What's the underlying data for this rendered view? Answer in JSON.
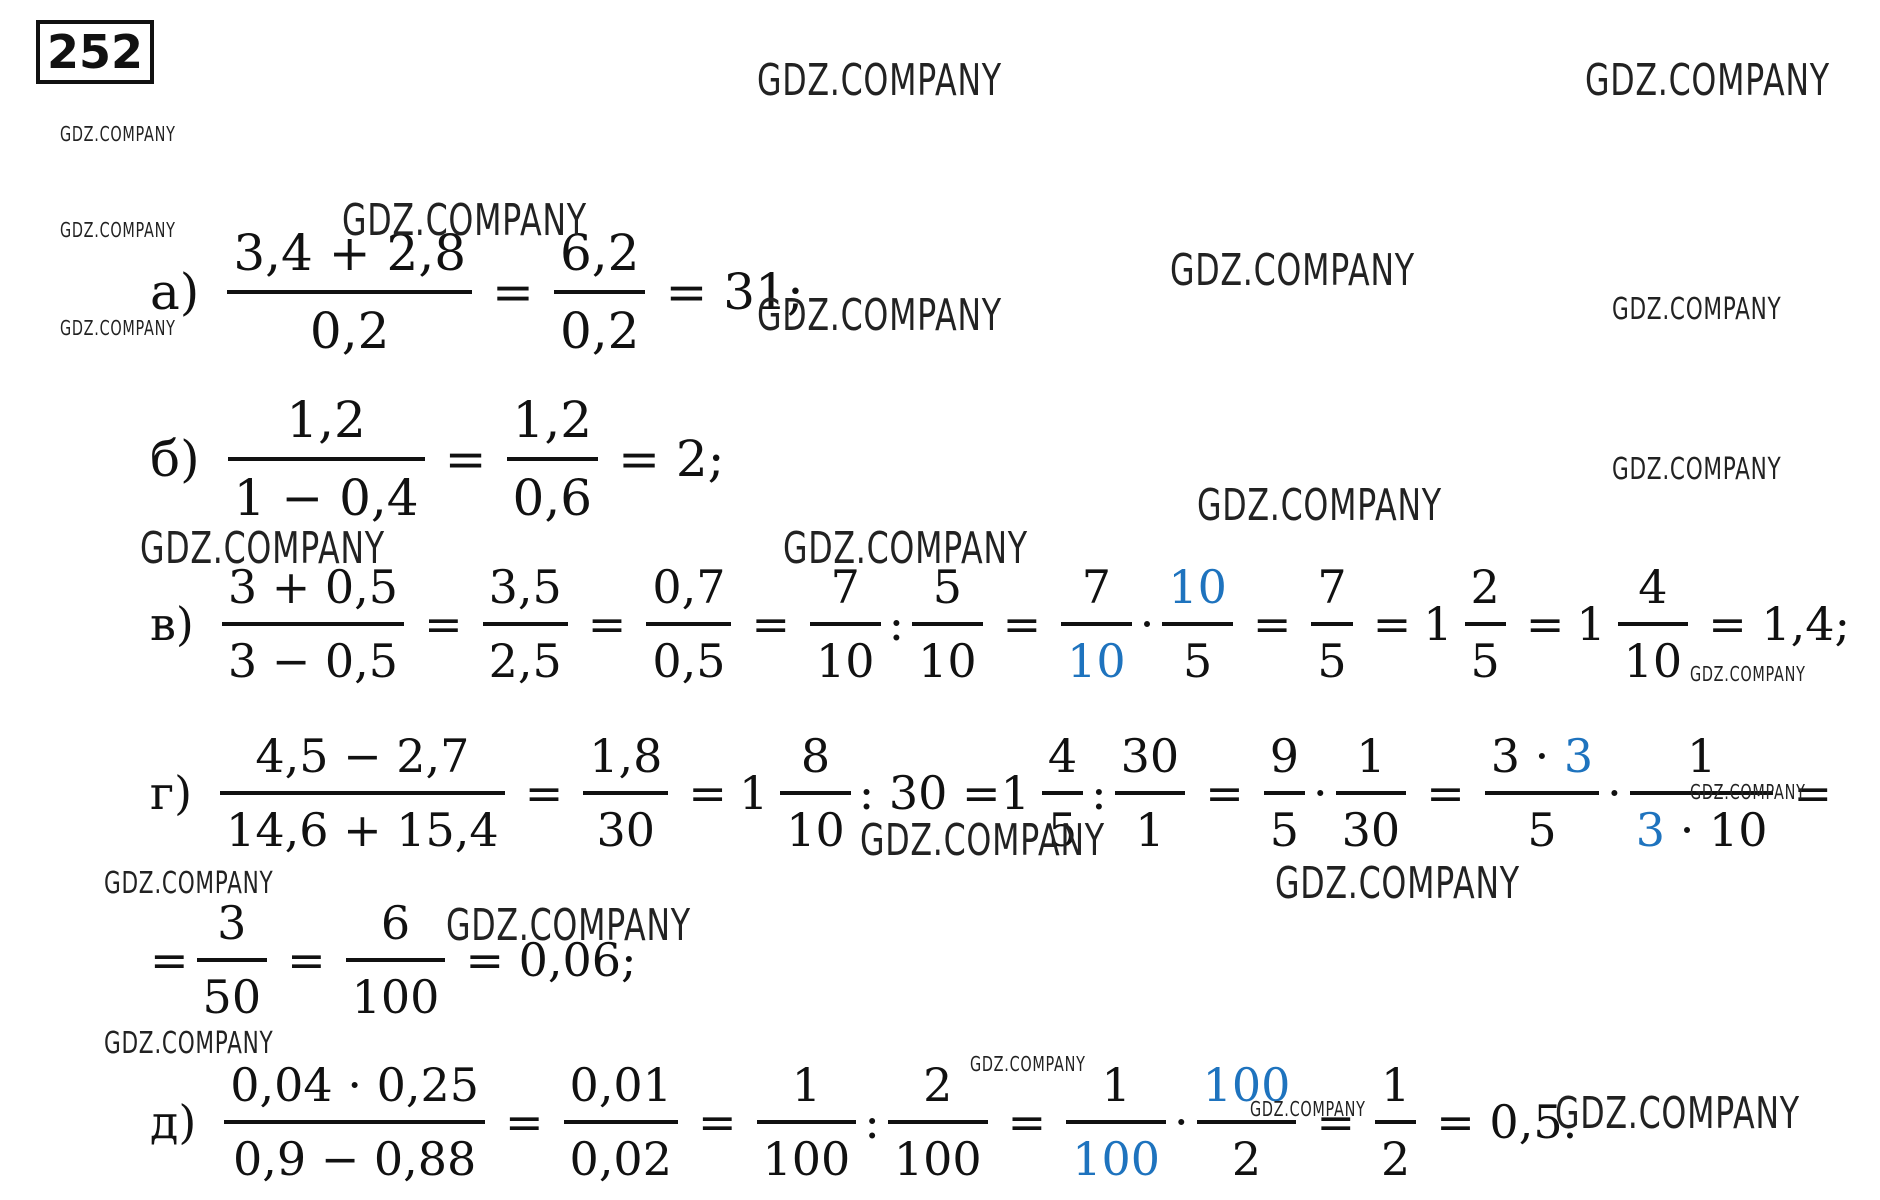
{
  "problem_number": "252",
  "watermark": "GDZ.COMPANY",
  "parts": {
    "a": {
      "label": "а)",
      "f1n": "3,4 + 2,8",
      "f1d": "0,2",
      "eq": "=",
      "f2n": "6,2",
      "f2d": "0,2",
      "result": "= 31;"
    },
    "b": {
      "label": "б)",
      "f1n": "1,2",
      "f1d": "1 − 0,4",
      "eq": "=",
      "f2n": "1,2",
      "f2d": "0,6",
      "result": "= 2;"
    },
    "v": {
      "label": "в)",
      "f1n": "3 + 0,5",
      "f1d": "3 − 0,5",
      "f2n": "3,5",
      "f2d": "2,5",
      "f3n": "0,7",
      "f3d": "0,5",
      "f4n": "7",
      "f4d": "10",
      "div": ":",
      "f5n": "5",
      "f5d": "10",
      "f6n": "7",
      "f6d": "10",
      "dot": "·",
      "f7n": "10",
      "f7d": "5",
      "f8n": "7",
      "f8d": "5",
      "m1w": "1",
      "m1n": "2",
      "m1d": "5",
      "m2w": "1",
      "m2n": "4",
      "m2d": "10",
      "result": "= 1,4;"
    },
    "g": {
      "label": "г)",
      "f1n": "4,5 − 2,7",
      "f1d": "14,6 + 15,4",
      "f2n": "1,8",
      "f2d": "30",
      "m1w": "1",
      "m1n": "8",
      "m1d": "10",
      "div30": ": 30 =",
      "m2w": "1",
      "m2n": "4",
      "m2d": "5",
      "div": ":",
      "f3n": "30",
      "f3d": "1",
      "f4n": "9",
      "f4d": "5",
      "dot": "·",
      "f5n": "1",
      "f5d": "30",
      "f6n_a": "3 · ",
      "f6n_b": "3",
      "f6d": "5",
      "f7n": "1",
      "f7d_a": "3",
      "f7d_b": " · 10",
      "tail": "="
    },
    "g2": {
      "lead": "=",
      "f1n": "3",
      "f1d": "50",
      "f2n": "6",
      "f2d": "100",
      "result": "= 0,06;"
    },
    "d": {
      "label": "д)",
      "f1n": "0,04 · 0,25",
      "f1d": "0,9 − 0,88",
      "f2n": "0,01",
      "f2d": "0,02",
      "f3n": "1",
      "f3d": "100",
      "div": ":",
      "f4n": "2",
      "f4d": "100",
      "f5n": "1",
      "f5d": "100",
      "dot": "·",
      "f6n": "100",
      "f6d": "2",
      "f7n": "1",
      "f7d": "2",
      "result": "= 0,5."
    }
  },
  "colors": {
    "accent_blue": "#1e73be",
    "text": "#111111"
  }
}
